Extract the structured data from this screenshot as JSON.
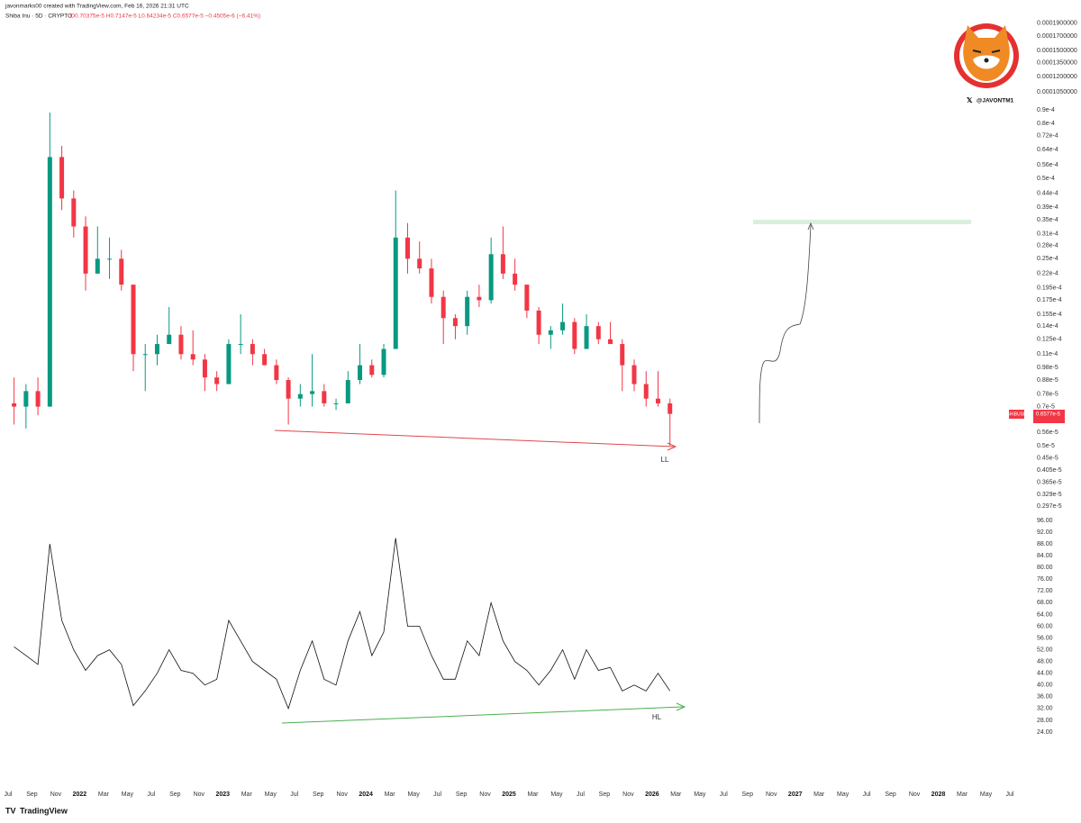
{
  "header": {
    "author_line": "javonmarks00 created with TradingView.com, Feb 16, 2026 21:31 UTC",
    "symbol_line": "Shiba Inu · 5D · CRYPTO",
    "ohlc_line": "O0.70375e-5 H0.7147e-5 L0.64234e-5 C0.6577e-5 −0.4505e-6 (−6.41%)",
    "handle": "@JAVONTM1",
    "brand": "TradingView"
  },
  "annotations": {
    "price_divergence": "LL",
    "rsi_divergence": "HL",
    "price_tag_symbol": "SHIBUSD",
    "price_tag_value": "0.6577e-5"
  },
  "chart_data": [
    {
      "type": "candlestick",
      "log": true,
      "up_color": "#089981",
      "down_color": "#f23645",
      "x": [
        "2021-07",
        "2021-08",
        "2021-09",
        "2021-10",
        "2021-11",
        "2021-12",
        "2022-01",
        "2022-02",
        "2022-03",
        "2022-04",
        "2022-05",
        "2022-06",
        "2022-07",
        "2022-08",
        "2022-09",
        "2022-10",
        "2022-11",
        "2022-12",
        "2023-01",
        "2023-02",
        "2023-03",
        "2023-04",
        "2023-05",
        "2023-06",
        "2023-07",
        "2023-08",
        "2023-09",
        "2023-10",
        "2023-11",
        "2023-12",
        "2024-01",
        "2024-02",
        "2024-03",
        "2024-04",
        "2024-05",
        "2024-06",
        "2024-07",
        "2024-08",
        "2024-09",
        "2024-10",
        "2024-11",
        "2024-12",
        "2025-01",
        "2025-02",
        "2025-03",
        "2025-04",
        "2025-05",
        "2025-06",
        "2025-07",
        "2025-08",
        "2025-09",
        "2025-10",
        "2025-11",
        "2025-12",
        "2026-01",
        "2026-02"
      ],
      "open": [
        7.2e-06,
        7e-06,
        8e-06,
        7e-06,
        6e-05,
        4.2e-05,
        3.3e-05,
        2.2e-05,
        2.5e-05,
        2.5e-05,
        2e-05,
        1.1e-05,
        1.1e-05,
        1.2e-05,
        1.3e-05,
        1.1e-05,
        1.05e-05,
        9e-06,
        8.5e-06,
        1.2e-05,
        1.2e-05,
        1.1e-05,
        1e-05,
        8.8e-06,
        7.5e-06,
        7.8e-06,
        8e-06,
        7.2e-06,
        7.2e-06,
        8.8e-06,
        1e-05,
        9.2e-06,
        1.15e-05,
        3e-05,
        2.5e-05,
        2.3e-05,
        1.8e-05,
        1.5e-05,
        1.4e-05,
        1.8e-05,
        1.75e-05,
        2.6e-05,
        2.2e-05,
        2e-05,
        1.6e-05,
        1.3e-05,
        1.35e-05,
        1.45e-05,
        1.15e-05,
        1.4e-05,
        1.25e-05,
        1.2e-05,
        1e-05,
        8.5e-06,
        7.5e-06,
        7.2e-06
      ],
      "high": [
        9e-06,
        8.5e-06,
        9e-06,
        8.8e-05,
        6.6e-05,
        4.5e-05,
        3.6e-05,
        3.3e-05,
        3e-05,
        2.7e-05,
        2e-05,
        1.2e-05,
        1.3e-05,
        1.65e-05,
        1.4e-05,
        1.35e-05,
        1.1e-05,
        9.5e-06,
        1.25e-05,
        1.55e-05,
        1.25e-05,
        1.15e-05,
        1.05e-05,
        9e-06,
        8.5e-06,
        1.1e-05,
        8.5e-06,
        7.5e-06,
        9.5e-06,
        1.2e-05,
        1.05e-05,
        1.2e-05,
        4.5e-05,
        3.4e-05,
        2.9e-05,
        2.5e-05,
        1.9e-05,
        1.55e-05,
        1.9e-05,
        2e-05,
        3e-05,
        3.3e-05,
        2.5e-05,
        2e-05,
        1.65e-05,
        1.4e-05,
        1.7e-05,
        1.5e-05,
        1.55e-05,
        1.45e-05,
        1.45e-05,
        1.25e-05,
        1.05e-05,
        9.5e-06,
        9.5e-06,
        7.5e-06
      ],
      "low": [
        6e-06,
        5.8e-06,
        6.5e-06,
        7e-06,
        3.8e-05,
        3e-05,
        1.9e-05,
        2.2e-05,
        2.1e-05,
        1.9e-05,
        9.5e-06,
        8e-06,
        1e-05,
        1.2e-05,
        1.05e-05,
        1e-05,
        8e-06,
        8e-06,
        8.5e-06,
        1.1e-05,
        1e-05,
        1e-05,
        8.5e-06,
        6e-06,
        7e-06,
        7e-06,
        7e-06,
        6.8e-06,
        7.2e-06,
        8.5e-06,
        9e-06,
        9e-06,
        1.15e-05,
        2.2e-05,
        2.2e-05,
        1.7e-05,
        1.2e-05,
        1.25e-05,
        1.3e-05,
        1.65e-05,
        1.7e-05,
        2.1e-05,
        1.9e-05,
        1.5e-05,
        1.2e-05,
        1.15e-05,
        1.3e-05,
        1.1e-05,
        1.15e-05,
        1.2e-05,
        1.2e-05,
        8e-06,
        8e-06,
        7e-06,
        7e-06,
        5e-06
      ],
      "close": [
        7e-06,
        8e-06,
        7e-06,
        6e-05,
        4.2e-05,
        3.3e-05,
        2.2e-05,
        2.5e-05,
        2.5e-05,
        2e-05,
        1.1e-05,
        1.1e-05,
        1.2e-05,
        1.3e-05,
        1.1e-05,
        1.05e-05,
        9e-06,
        8.5e-06,
        1.2e-05,
        1.2e-05,
        1.1e-05,
        1e-05,
        8.8e-06,
        7.5e-06,
        7.8e-06,
        8e-06,
        7.2e-06,
        7.2e-06,
        8.8e-06,
        1e-05,
        9.2e-06,
        1.15e-05,
        3e-05,
        2.5e-05,
        2.3e-05,
        1.8e-05,
        1.5e-05,
        1.4e-05,
        1.8e-05,
        1.75e-05,
        2.6e-05,
        2.2e-05,
        2e-05,
        1.6e-05,
        1.3e-05,
        1.35e-05,
        1.45e-05,
        1.15e-05,
        1.4e-05,
        1.25e-05,
        1.2e-05,
        1e-05,
        8.5e-06,
        7.5e-06,
        7.2e-06,
        6.577e-06
      ],
      "xlim": [
        "2021-07",
        "2028-07"
      ],
      "xticks": [
        {
          "value": "2021-07",
          "label": "Jul"
        },
        {
          "value": "2021-09",
          "label": "Sep"
        },
        {
          "value": "2021-11",
          "label": "Nov"
        },
        {
          "value": "2022-01",
          "label": "2022"
        },
        {
          "value": "2022-03",
          "label": "Mar"
        },
        {
          "value": "2022-05",
          "label": "May"
        },
        {
          "value": "2022-07",
          "label": "Jul"
        },
        {
          "value": "2022-09",
          "label": "Sep"
        },
        {
          "value": "2022-11",
          "label": "Nov"
        },
        {
          "value": "2023-01",
          "label": "2023"
        },
        {
          "value": "2023-03",
          "label": "Mar"
        },
        {
          "value": "2023-05",
          "label": "May"
        },
        {
          "value": "2023-07",
          "label": "Jul"
        },
        {
          "value": "2023-09",
          "label": "Sep"
        },
        {
          "value": "2023-11",
          "label": "Nov"
        },
        {
          "value": "2024-01",
          "label": "2024"
        },
        {
          "value": "2024-03",
          "label": "Mar"
        },
        {
          "value": "2024-05",
          "label": "May"
        },
        {
          "value": "2024-07",
          "label": "Jul"
        },
        {
          "value": "2024-09",
          "label": "Sep"
        },
        {
          "value": "2024-11",
          "label": "Nov"
        },
        {
          "value": "2025-01",
          "label": "2025"
        },
        {
          "value": "2025-03",
          "label": "Mar"
        },
        {
          "value": "2025-05",
          "label": "May"
        },
        {
          "value": "2025-07",
          "label": "Jul"
        },
        {
          "value": "2025-09",
          "label": "Sep"
        },
        {
          "value": "2025-11",
          "label": "Nov"
        },
        {
          "value": "2026-01",
          "label": "2026"
        },
        {
          "value": "2026-03",
          "label": "Mar"
        },
        {
          "value": "2026-05",
          "label": "May"
        },
        {
          "value": "2026-07",
          "label": "Jul"
        },
        {
          "value": "2026-09",
          "label": "Sep"
        },
        {
          "value": "2026-11",
          "label": "Nov"
        },
        {
          "value": "2027-01",
          "label": "2027"
        },
        {
          "value": "2027-03",
          "label": "Mar"
        },
        {
          "value": "2027-05",
          "label": "May"
        },
        {
          "value": "2027-07",
          "label": "Jul"
        },
        {
          "value": "2027-09",
          "label": "Sep"
        },
        {
          "value": "2027-11",
          "label": "Nov"
        },
        {
          "value": "2028-01",
          "label": "2028"
        },
        {
          "value": "2028-03",
          "label": "Mar"
        },
        {
          "value": "2028-05",
          "label": "May"
        },
        {
          "value": "2028-07",
          "label": "Jul"
        }
      ],
      "ylim": [
        2.69e-06,
        0.0002318
      ],
      "yticks": [
        {
          "value": 0.00019,
          "label": "0.0001900000"
        },
        {
          "value": 0.00017,
          "label": "0.0001700000"
        },
        {
          "value": 0.00015,
          "label": "0.0001500000"
        },
        {
          "value": 0.000135,
          "label": "0.0001350000"
        },
        {
          "value": 0.00012,
          "label": "0.0001200000"
        },
        {
          "value": 0.000105,
          "label": "0.0001050000"
        },
        {
          "value": 9e-05,
          "label": "0.9e-4"
        },
        {
          "value": 8e-05,
          "label": "0.8e-4"
        },
        {
          "value": 7.2e-05,
          "label": "0.72e-4"
        },
        {
          "value": 6.4e-05,
          "label": "0.64e-4"
        },
        {
          "value": 5.6e-05,
          "label": "0.56e-4"
        },
        {
          "value": 5e-05,
          "label": "0.5e-4"
        },
        {
          "value": 4.4e-05,
          "label": "0.44e-4"
        },
        {
          "value": 3.9e-05,
          "label": "0.39e-4"
        },
        {
          "value": 3.5e-05,
          "label": "0.35e-4"
        },
        {
          "value": 3.1e-05,
          "label": "0.31e-4"
        },
        {
          "value": 2.8e-05,
          "label": "0.28e-4"
        },
        {
          "value": 2.5e-05,
          "label": "0.25e-4"
        },
        {
          "value": 2.2e-05,
          "label": "0.22e-4"
        },
        {
          "value": 1.95e-05,
          "label": "0.195e-4"
        },
        {
          "value": 1.75e-05,
          "label": "0.175e-4"
        },
        {
          "value": 1.55e-05,
          "label": "0.155e-4"
        },
        {
          "value": 1.4e-05,
          "label": "0.14e-4"
        },
        {
          "value": 1.25e-05,
          "label": "0.125e-4"
        },
        {
          "value": 1.1e-05,
          "label": "0.11e-4"
        },
        {
          "value": 9.8e-06,
          "label": "0.98e-5"
        },
        {
          "value": 8.8e-06,
          "label": "0.88e-5"
        },
        {
          "value": 7.8e-06,
          "label": "0.78e-5"
        },
        {
          "value": 7e-06,
          "label": "0.7e-5"
        },
        {
          "value": 5.6e-06,
          "label": "0.56e-5"
        },
        {
          "value": 5e-06,
          "label": "0.5e-5"
        },
        {
          "value": 4.5e-06,
          "label": "0.45e-5"
        },
        {
          "value": 4.05e-06,
          "label": "0.405e-5"
        },
        {
          "value": 3.65e-06,
          "label": "0.365e-5"
        },
        {
          "value": 3.29e-06,
          "label": "0.329e-5"
        },
        {
          "value": 2.97e-06,
          "label": "0.297e-5"
        }
      ]
    },
    {
      "type": "line",
      "color": "#111111",
      "x": [
        "2021-07",
        "2021-08",
        "2021-09",
        "2021-10",
        "2021-11",
        "2021-12",
        "2022-01",
        "2022-02",
        "2022-03",
        "2022-04",
        "2022-05",
        "2022-06",
        "2022-07",
        "2022-08",
        "2022-09",
        "2022-10",
        "2022-11",
        "2022-12",
        "2023-01",
        "2023-02",
        "2023-03",
        "2023-04",
        "2023-05",
        "2023-06",
        "2023-07",
        "2023-08",
        "2023-09",
        "2023-10",
        "2023-11",
        "2023-12",
        "2024-01",
        "2024-02",
        "2024-03",
        "2024-04",
        "2024-05",
        "2024-06",
        "2024-07",
        "2024-08",
        "2024-09",
        "2024-10",
        "2024-11",
        "2024-12",
        "2025-01",
        "2025-02",
        "2025-03",
        "2025-04",
        "2025-05",
        "2025-06",
        "2025-07",
        "2025-08",
        "2025-09",
        "2025-10",
        "2025-11",
        "2025-12",
        "2026-01",
        "2026-02"
      ],
      "values": [
        53,
        50,
        47,
        88,
        62,
        52,
        45,
        50,
        52,
        47,
        33,
        38,
        44,
        52,
        45,
        44,
        40,
        42,
        62,
        55,
        48,
        45,
        42,
        32,
        45,
        55,
        42,
        40,
        55,
        65,
        50,
        58,
        90,
        60,
        60,
        50,
        42,
        42,
        55,
        50,
        68,
        55,
        48,
        45,
        40,
        45,
        52,
        42,
        52,
        45,
        46,
        38,
        40,
        38,
        44,
        38
      ],
      "xlim": [
        "2021-07",
        "2028-07"
      ],
      "ylim": [
        24,
        96
      ],
      "yticks": [
        {
          "value": 96,
          "label": "96.00"
        },
        {
          "value": 92,
          "label": "92.00"
        },
        {
          "value": 88,
          "label": "88.00"
        },
        {
          "value": 84,
          "label": "84.00"
        },
        {
          "value": 80,
          "label": "80.00"
        },
        {
          "value": 76,
          "label": "76.00"
        },
        {
          "value": 72,
          "label": "72.00"
        },
        {
          "value": 68,
          "label": "68.00"
        },
        {
          "value": 64,
          "label": "64.00"
        },
        {
          "value": 60,
          "label": "60.00"
        },
        {
          "value": 56,
          "label": "56.00"
        },
        {
          "value": 52,
          "label": "52.00"
        },
        {
          "value": 48,
          "label": "48.00"
        },
        {
          "value": 44,
          "label": "44.00"
        },
        {
          "value": 40,
          "label": "40.00"
        },
        {
          "value": 36,
          "label": "36.00"
        },
        {
          "value": 32,
          "label": "32.00"
        },
        {
          "value": 28,
          "label": "28.00"
        },
        {
          "value": 24,
          "label": "24.00"
        }
      ]
    }
  ]
}
